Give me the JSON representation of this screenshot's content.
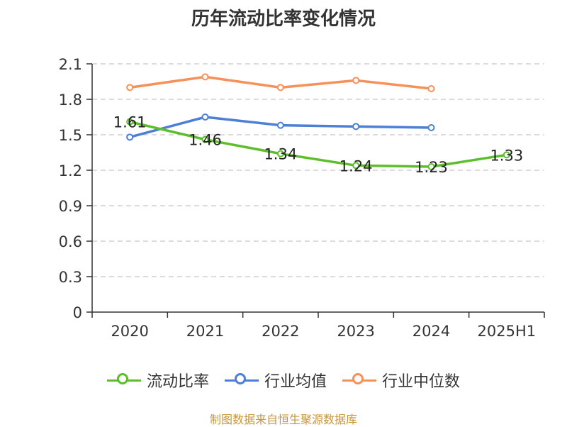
{
  "chart_data": {
    "type": "line",
    "title": "历年流动比率变化情况",
    "categories": [
      "2020",
      "2021",
      "2022",
      "2023",
      "2024",
      "2025H1"
    ],
    "yticks": [
      "0",
      "0.3",
      "0.6",
      "0.9",
      "1.2",
      "1.5",
      "1.8",
      "2.1"
    ],
    "ylim": [
      0,
      2.1
    ],
    "grid": true,
    "legend_position": "bottom",
    "series": [
      {
        "name": "流动比率",
        "color": "#5cbf2a",
        "values": [
          1.61,
          1.46,
          1.34,
          1.24,
          1.23,
          1.33
        ],
        "labels": [
          "1.61",
          "1.46",
          "1.34",
          "1.24",
          "1.23",
          "1.33"
        ]
      },
      {
        "name": "行业均值",
        "color": "#4e7fd6",
        "values": [
          1.48,
          1.65,
          1.58,
          1.57,
          1.56,
          null
        ]
      },
      {
        "name": "行业中位数",
        "color": "#f6915a",
        "values": [
          1.9,
          1.99,
          1.9,
          1.96,
          1.89,
          null
        ]
      }
    ]
  },
  "source": "制图数据来自恒生聚源数据库"
}
